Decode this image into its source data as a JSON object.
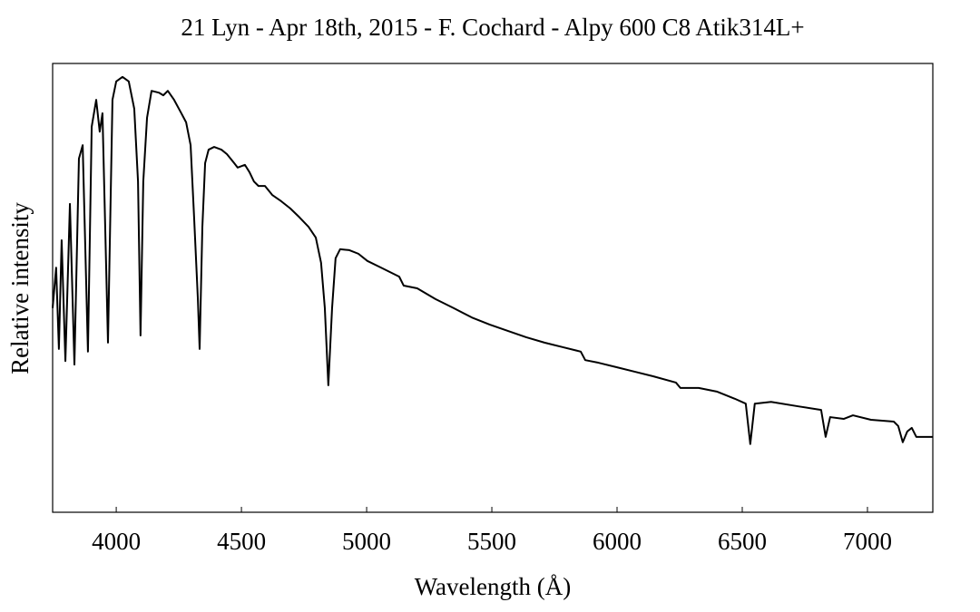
{
  "chart_data": {
    "type": "line",
    "title": "21 Lyn - Apr 18th, 2015 - F. Cochard - Alpy 600 C8 Atik314L+",
    "x_label": "Wavelength (Å)",
    "y_label": "Relative intensity",
    "color": "#000000",
    "xlim": [
      3746,
      7261
    ],
    "ylim": [
      0,
      1
    ],
    "xticks": [
      4000,
      4500,
      5000,
      5500,
      6000,
      6500,
      7000
    ],
    "yticks": [],
    "x": [
      3746,
      3760,
      3771,
      3782,
      3797,
      3815,
      3833,
      3851,
      3866,
      3887,
      3902,
      3920,
      3934,
      3945,
      3967,
      3985,
      4000,
      4025,
      4050,
      4072,
      4087,
      4097,
      4108,
      4123,
      4141,
      4170,
      4188,
      4206,
      4231,
      4260,
      4279,
      4297,
      4311,
      4326,
      4333,
      4344,
      4355,
      4369,
      4391,
      4420,
      4442,
      4471,
      4485,
      4514,
      4532,
      4550,
      4568,
      4594,
      4623,
      4659,
      4695,
      4732,
      4768,
      4797,
      4818,
      4833,
      4847,
      4862,
      4876,
      4894,
      4931,
      4967,
      5003,
      5058,
      5130,
      5148,
      5202,
      5275,
      5347,
      5420,
      5492,
      5565,
      5637,
      5710,
      5782,
      5855,
      5873,
      5927,
      6000,
      6072,
      6144,
      6235,
      6253,
      6326,
      6398,
      6470,
      6514,
      6532,
      6550,
      6615,
      6724,
      6815,
      6833,
      6851,
      6905,
      6942,
      7014,
      7105,
      7123,
      7141,
      7159,
      7177,
      7195,
      7261
    ],
    "values": [
      0.455,
      0.545,
      0.364,
      0.606,
      0.337,
      0.687,
      0.329,
      0.788,
      0.818,
      0.358,
      0.859,
      0.919,
      0.848,
      0.889,
      0.378,
      0.919,
      0.96,
      0.97,
      0.96,
      0.899,
      0.737,
      0.394,
      0.737,
      0.879,
      0.939,
      0.935,
      0.929,
      0.939,
      0.919,
      0.889,
      0.869,
      0.818,
      0.657,
      0.475,
      0.364,
      0.636,
      0.778,
      0.808,
      0.814,
      0.808,
      0.798,
      0.778,
      0.768,
      0.774,
      0.758,
      0.737,
      0.727,
      0.727,
      0.707,
      0.693,
      0.677,
      0.657,
      0.636,
      0.612,
      0.556,
      0.455,
      0.283,
      0.455,
      0.566,
      0.586,
      0.584,
      0.576,
      0.56,
      0.545,
      0.525,
      0.505,
      0.499,
      0.475,
      0.455,
      0.434,
      0.418,
      0.404,
      0.39,
      0.378,
      0.368,
      0.358,
      0.339,
      0.333,
      0.323,
      0.313,
      0.303,
      0.289,
      0.277,
      0.277,
      0.269,
      0.253,
      0.242,
      0.152,
      0.242,
      0.246,
      0.236,
      0.228,
      0.168,
      0.212,
      0.208,
      0.216,
      0.206,
      0.202,
      0.192,
      0.156,
      0.18,
      0.188,
      0.168,
      0.168
    ]
  }
}
